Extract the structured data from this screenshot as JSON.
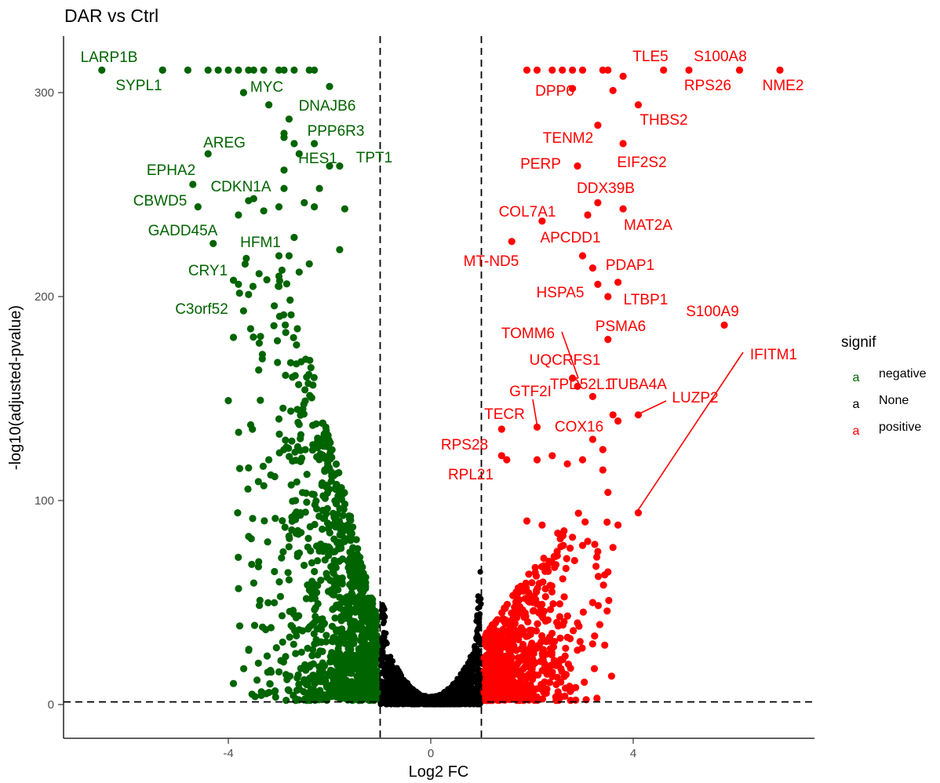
{
  "chart_data": {
    "type": "scatter",
    "title": "DAR vs Ctrl",
    "xlabel": "Log2 FC",
    "ylabel": "-log10(adjusted-pvalue)",
    "xlim": [
      -7.2,
      7.6
    ],
    "ylim": [
      -14,
      325
    ],
    "x_ticks": [
      -4,
      0,
      4
    ],
    "y_ticks": [
      0,
      100,
      200,
      300
    ],
    "thresholds": {
      "x": [
        -1,
        1
      ],
      "y": 1.3
    },
    "grid": false,
    "legend": {
      "title": "signif",
      "position": "right",
      "key_glyph": "a",
      "entries": [
        {
          "label": "negative",
          "color": "#006400"
        },
        {
          "label": "None",
          "color": "#000000"
        },
        {
          "label": "positive",
          "color": "#ff0000"
        }
      ]
    },
    "colors": {
      "negative": "#006400",
      "None": "#000000",
      "positive": "#ff0000"
    },
    "labeled_points": [
      {
        "gene": "LARP1B",
        "x": -6.5,
        "y": 311,
        "signif": "negative"
      },
      {
        "gene": "SYPL1",
        "x": -5.3,
        "y": 311,
        "signif": "negative"
      },
      {
        "gene": "MYC",
        "x": -3.7,
        "y": 300,
        "signif": "negative"
      },
      {
        "gene": "DNAJB6",
        "x": -3.2,
        "y": 294,
        "signif": "negative"
      },
      {
        "gene": "PPP6R3",
        "x": -2.9,
        "y": 280,
        "signif": "negative"
      },
      {
        "gene": "AREG",
        "x": -4.4,
        "y": 270,
        "signif": "negative"
      },
      {
        "gene": "HES1",
        "x": -2.6,
        "y": 270,
        "signif": "negative"
      },
      {
        "gene": "TPT1",
        "x": -1.8,
        "y": 264,
        "signif": "negative"
      },
      {
        "gene": "EPHA2",
        "x": -4.7,
        "y": 255,
        "signif": "negative"
      },
      {
        "gene": "CDKN1A",
        "x": -2.9,
        "y": 262,
        "signif": "negative"
      },
      {
        "gene": "CBWD5",
        "x": -4.6,
        "y": 244,
        "signif": "negative"
      },
      {
        "gene": "GADD45A",
        "x": -4.3,
        "y": 226,
        "signif": "negative"
      },
      {
        "gene": "HFM1",
        "x": -2.7,
        "y": 229,
        "signif": "negative"
      },
      {
        "gene": "CRY1",
        "x": -3.9,
        "y": 208,
        "signif": "negative"
      },
      {
        "gene": "C3orf52",
        "x": -3.7,
        "y": 193,
        "signif": "negative"
      },
      {
        "gene": "TLE5",
        "x": 4.6,
        "y": 311,
        "signif": "positive"
      },
      {
        "gene": "S100A8",
        "x": 6.1,
        "y": 311,
        "signif": "positive"
      },
      {
        "gene": "RPS26",
        "x": 5.1,
        "y": 311,
        "signif": "positive"
      },
      {
        "gene": "NME2",
        "x": 6.9,
        "y": 311,
        "signif": "positive"
      },
      {
        "gene": "DPP6",
        "x": 2.8,
        "y": 302,
        "signif": "positive"
      },
      {
        "gene": "THBS2",
        "x": 4.1,
        "y": 294,
        "signif": "positive"
      },
      {
        "gene": "TENM2",
        "x": 3.3,
        "y": 284,
        "signif": "positive"
      },
      {
        "gene": "EIF2S2",
        "x": 3.8,
        "y": 275,
        "signif": "positive"
      },
      {
        "gene": "PERP",
        "x": 2.9,
        "y": 264,
        "signif": "positive"
      },
      {
        "gene": "DDX39B",
        "x": 3.3,
        "y": 246,
        "signif": "positive"
      },
      {
        "gene": "COL7A1",
        "x": 2.2,
        "y": 237,
        "signif": "positive"
      },
      {
        "gene": "MAT2A",
        "x": 3.8,
        "y": 243,
        "signif": "positive"
      },
      {
        "gene": "APCDD1",
        "x": 3.0,
        "y": 220,
        "signif": "positive"
      },
      {
        "gene": "MT-ND5",
        "x": 1.6,
        "y": 227,
        "signif": "positive"
      },
      {
        "gene": "PDAP1",
        "x": 3.2,
        "y": 214,
        "signif": "positive"
      },
      {
        "gene": "HSPA5",
        "x": 3.3,
        "y": 206,
        "signif": "positive"
      },
      {
        "gene": "LTBP1",
        "x": 3.5,
        "y": 200,
        "signif": "positive"
      },
      {
        "gene": "S100A9",
        "x": 5.8,
        "y": 186,
        "signif": "positive"
      },
      {
        "gene": "PSMA6",
        "x": 3.5,
        "y": 179,
        "signif": "positive"
      },
      {
        "gene": "TOMM6",
        "x": 2.8,
        "y": 160,
        "signif": "positive"
      },
      {
        "gene": "UQCRFS1",
        "x": 2.9,
        "y": 156,
        "signif": "positive"
      },
      {
        "gene": "IFITM1",
        "x": 4.1,
        "y": 94,
        "signif": "positive"
      },
      {
        "gene": "TPD52L1",
        "x": 3.2,
        "y": 151,
        "signif": "positive"
      },
      {
        "gene": "TUBA4A",
        "x": 3.7,
        "y": 139,
        "signif": "positive"
      },
      {
        "gene": "GTF2I",
        "x": 2.1,
        "y": 136,
        "signif": "positive"
      },
      {
        "gene": "LUZP2",
        "x": 4.1,
        "y": 142,
        "signif": "positive"
      },
      {
        "gene": "TECR",
        "x": 1.4,
        "y": 135,
        "signif": "positive"
      },
      {
        "gene": "COX16",
        "x": 3.6,
        "y": 142,
        "signif": "positive"
      },
      {
        "gene": "RPS28",
        "x": 1.4,
        "y": 122,
        "signif": "positive"
      },
      {
        "gene": "RPL21",
        "x": 1.5,
        "y": 120,
        "signif": "positive"
      }
    ],
    "extra_points": {
      "negative": [
        [
          -5.3,
          311
        ],
        [
          -4.8,
          311
        ],
        [
          -4.4,
          311
        ],
        [
          -4.2,
          311
        ],
        [
          -4.0,
          311
        ],
        [
          -3.8,
          311
        ],
        [
          -3.6,
          311
        ],
        [
          -3.5,
          311
        ],
        [
          -3.3,
          311
        ],
        [
          -3.0,
          311
        ],
        [
          -2.9,
          311
        ],
        [
          -2.7,
          311
        ],
        [
          -2.4,
          311
        ],
        [
          -2.3,
          311
        ],
        [
          -2.0,
          303
        ],
        [
          -2.8,
          287
        ],
        [
          -2.9,
          278
        ],
        [
          -2.7,
          275
        ],
        [
          -2.3,
          275
        ],
        [
          -2.0,
          264
        ],
        [
          -2.9,
          253
        ],
        [
          -2.2,
          253
        ],
        [
          -3.5,
          248
        ],
        [
          -3.6,
          247
        ],
        [
          -3.0,
          244
        ],
        [
          -2.5,
          246
        ],
        [
          -2.3,
          244
        ],
        [
          -3.3,
          242
        ],
        [
          -1.7,
          243
        ],
        [
          -3.8,
          240
        ],
        [
          -3.0,
          220
        ],
        [
          -2.8,
          220
        ],
        [
          -1.8,
          223
        ],
        [
          -2.4,
          216
        ],
        [
          -3.0,
          210
        ],
        [
          -2.6,
          212
        ],
        [
          -3.0,
          205
        ],
        [
          -3.8,
          206
        ],
        [
          -3.6,
          201
        ],
        [
          -3.9,
          180
        ],
        [
          -3.4,
          164
        ],
        [
          -4.0,
          149
        ],
        [
          -3.0,
          140
        ],
        [
          -3.6,
          116
        ],
        [
          -3.2,
          120
        ],
        [
          -3.4,
          70
        ],
        [
          -3.0,
          16
        ],
        [
          -2.2,
          16
        ]
      ],
      "positive": [
        [
          1.9,
          311
        ],
        [
          2.1,
          311
        ],
        [
          2.4,
          311
        ],
        [
          2.6,
          311
        ],
        [
          2.8,
          311
        ],
        [
          3.0,
          311
        ],
        [
          3.4,
          311
        ],
        [
          3.5,
          311
        ],
        [
          3.8,
          308
        ],
        [
          3.6,
          301
        ],
        [
          3.1,
          240
        ],
        [
          3.7,
          207
        ],
        [
          3.7,
          88
        ],
        [
          3.2,
          130
        ],
        [
          3.4,
          125
        ],
        [
          3.4,
          115
        ],
        [
          3.0,
          120
        ],
        [
          2.7,
          118
        ],
        [
          2.4,
          122
        ],
        [
          2.1,
          120
        ],
        [
          3.5,
          104
        ],
        [
          3.6,
          77
        ],
        [
          2.8,
          82
        ],
        [
          3.1,
          80
        ],
        [
          3.3,
          75
        ],
        [
          3.0,
          78
        ],
        [
          1.9,
          90
        ],
        [
          2.2,
          88
        ],
        [
          2.5,
          73
        ],
        [
          2.9,
          40
        ],
        [
          3.2,
          50
        ],
        [
          3.5,
          65
        ]
      ]
    }
  }
}
